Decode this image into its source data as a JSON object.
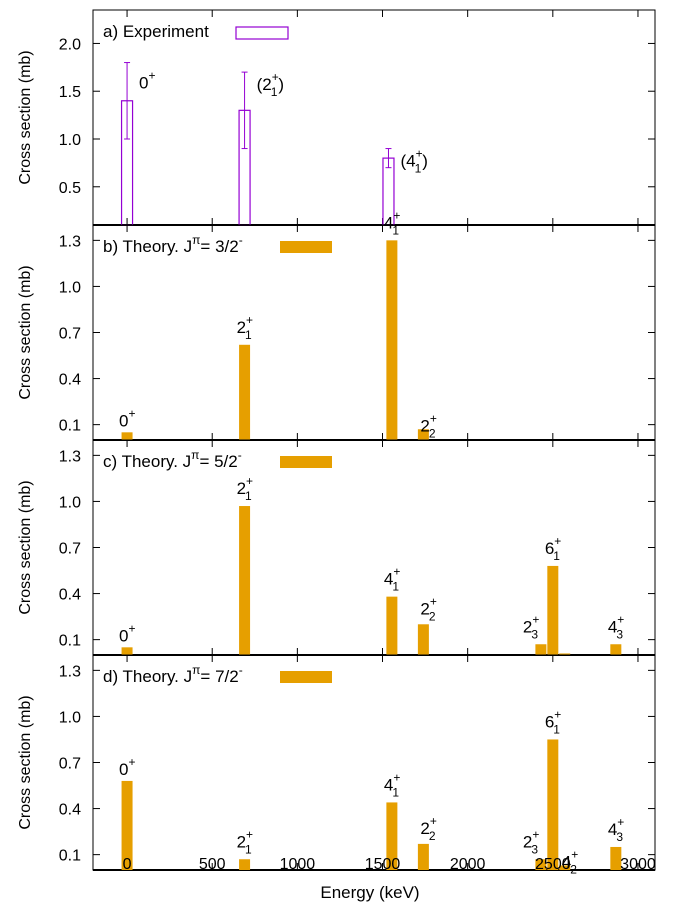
{
  "x_axis": {
    "label": "Energy (keV)",
    "ticks": [
      "0",
      "500",
      "1000",
      "1500",
      "2000",
      "2500",
      "3000"
    ],
    "range": [
      -200,
      3100
    ]
  },
  "colors": {
    "experiment": "#9400d3",
    "theory": "#e69f00",
    "axis": "#000000"
  },
  "chart_data": [
    {
      "type": "bar",
      "panel_label": "a) Experiment",
      "ylabel": "Cross section (mb)",
      "y_ticks": [
        "0.5",
        "1.0",
        "1.5",
        "2.0"
      ],
      "ylim": [
        0.1,
        2.35
      ],
      "style": "open-with-errorbars",
      "bars": [
        {
          "x": 0,
          "value": 1.4,
          "err": 0.4,
          "label": "0",
          "parity": "+"
        },
        {
          "x": 690,
          "value": 1.3,
          "err": 0.4,
          "label": "(2",
          "sub": "1",
          "parity": "+",
          "close": ")"
        },
        {
          "x": 1535,
          "value": 0.8,
          "err": 0.1,
          "label": "(4",
          "sub": "1",
          "parity": "+",
          "close": ")"
        }
      ]
    },
    {
      "type": "bar",
      "panel_label": "b) Theory.  J",
      "panel_sup": "π",
      "panel_rest": "= 3/2",
      "panel_minus": "-",
      "ylabel": "Cross section (mb)",
      "y_ticks": [
        "0.1",
        "0.4",
        "0.7",
        "1.0",
        "1.3"
      ],
      "ylim": [
        0.0,
        1.4
      ],
      "style": "filled",
      "bars": [
        {
          "x": 0,
          "value": 0.05,
          "label": "0",
          "parity": "+"
        },
        {
          "x": 690,
          "value": 0.62,
          "label": "2",
          "sub": "1",
          "parity": "+"
        },
        {
          "x": 1555,
          "value": 1.3,
          "label": "4",
          "sub": "1",
          "parity": "+"
        },
        {
          "x": 1740,
          "value": 0.07,
          "label": "2",
          "sub": "2",
          "parity": "+"
        }
      ]
    },
    {
      "type": "bar",
      "panel_label": "c) Theory.  J",
      "panel_sup": "π",
      "panel_rest": "= 5/2",
      "panel_minus": "-",
      "ylabel": "Cross section (mb)",
      "y_ticks": [
        "0.1",
        "0.4",
        "0.7",
        "1.0",
        "1.3"
      ],
      "ylim": [
        0.0,
        1.4
      ],
      "style": "filled",
      "bars": [
        {
          "x": 0,
          "value": 0.05,
          "label": "0",
          "parity": "+"
        },
        {
          "x": 690,
          "value": 0.97,
          "label": "2",
          "sub": "1",
          "parity": "+"
        },
        {
          "x": 1555,
          "value": 0.38,
          "label": "4",
          "sub": "1",
          "parity": "+"
        },
        {
          "x": 1740,
          "value": 0.2,
          "label": "2",
          "sub": "2",
          "parity": "+"
        },
        {
          "x": 2430,
          "value": 0.07,
          "label": "2",
          "sub": "3",
          "parity": "+"
        },
        {
          "x": 2500,
          "value": 0.58,
          "label": "6",
          "sub": "1",
          "parity": "+"
        },
        {
          "x": 2570,
          "value": 0.01,
          "label": "",
          "sub": "",
          "parity": ""
        },
        {
          "x": 2870,
          "value": 0.07,
          "label": "4",
          "sub": "3",
          "parity": "+"
        }
      ]
    },
    {
      "type": "bar",
      "panel_label": "d) Theory.  J",
      "panel_sup": "π",
      "panel_rest": "= 7/2",
      "panel_minus": "-",
      "ylabel": "Cross section (mb)",
      "y_ticks": [
        "0.1",
        "0.4",
        "0.7",
        "1.0",
        "1.3"
      ],
      "ylim": [
        0.0,
        1.4
      ],
      "style": "filled",
      "bars": [
        {
          "x": 0,
          "value": 0.58,
          "label": "0",
          "parity": "+"
        },
        {
          "x": 690,
          "value": 0.07,
          "label": "2",
          "sub": "1",
          "parity": "+"
        },
        {
          "x": 1555,
          "value": 0.44,
          "label": "4",
          "sub": "1",
          "parity": "+"
        },
        {
          "x": 1740,
          "value": 0.17,
          "label": "2",
          "sub": "2",
          "parity": "+"
        },
        {
          "x": 2430,
          "value": 0.07,
          "label": "2",
          "sub": "3",
          "parity": "+"
        },
        {
          "x": 2500,
          "value": 0.85,
          "label": "6",
          "sub": "1",
          "parity": "+"
        },
        {
          "x": 2570,
          "value": 0.03,
          "label": "4",
          "sub": "2",
          "parity": "+"
        },
        {
          "x": 2870,
          "value": 0.15,
          "label": "4",
          "sub": "3",
          "parity": "+"
        }
      ]
    }
  ]
}
